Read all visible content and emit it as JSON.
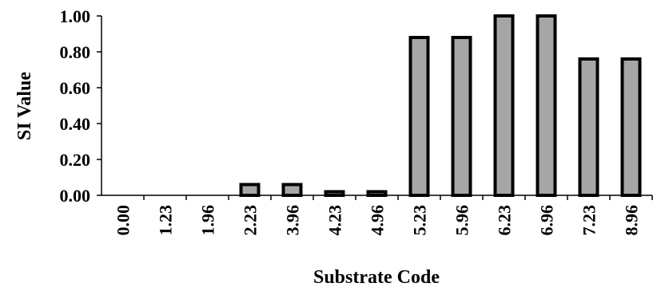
{
  "chart_data": {
    "type": "bar",
    "title": "",
    "xlabel": "Substrate Code",
    "ylabel": "SI Value",
    "categories": [
      "0.00",
      "1.23",
      "1.96",
      "2.23",
      "3.96",
      "4.23",
      "4.96",
      "5.23",
      "5.96",
      "6.23",
      "6.96",
      "7.23",
      "8.96"
    ],
    "values": [
      0,
      0,
      0,
      0.06,
      0.06,
      0.02,
      0.02,
      0.88,
      0.88,
      1.0,
      1.0,
      0.76,
      0.76
    ],
    "yticks": [
      "0.00",
      "0.20",
      "0.40",
      "0.60",
      "0.80",
      "1.00"
    ],
    "ylim": [
      0,
      1.0
    ],
    "grid": false,
    "bar_fill": "#a6a6a6",
    "bar_stroke": "#000000"
  }
}
